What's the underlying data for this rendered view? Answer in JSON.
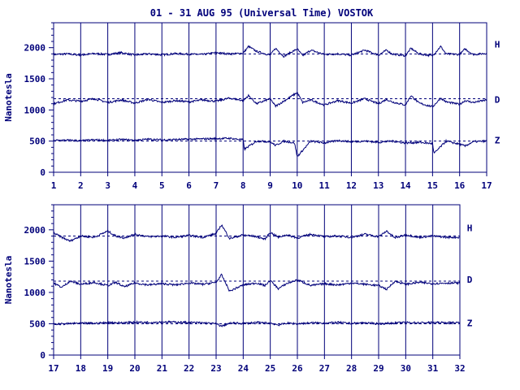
{
  "chart_data": [
    {
      "type": "line",
      "title": "01 - 31 AUG 95 (Universal Time) VOSTOK",
      "ylabel": "Nanotesla",
      "x_ticks": [
        "1",
        "2",
        "3",
        "4",
        "5",
        "6",
        "7",
        "8",
        "9",
        "10",
        "11",
        "12",
        "13",
        "14",
        "15",
        "16",
        "17"
      ],
      "xlim": [
        1,
        17
      ],
      "y_ticks": [
        "0",
        "500",
        "1000",
        "1500",
        "2000"
      ],
      "ylim": [
        0,
        2400
      ],
      "grid": true,
      "series": [
        {
          "name": "H",
          "baseline": 1900,
          "color": "#00007a",
          "x": [
            1,
            1.5,
            2,
            2.5,
            3,
            3.5,
            4,
            4.5,
            5,
            5.5,
            6,
            6.5,
            7,
            7.5,
            8,
            8.2,
            8.5,
            9,
            9.2,
            9.5,
            10,
            10.2,
            10.5,
            11,
            11.5,
            12,
            12.5,
            13,
            13.3,
            13.5,
            14,
            14.2,
            14.5,
            15,
            15.3,
            15.5,
            16,
            16.2,
            16.5,
            17
          ],
          "y": [
            1890,
            1900,
            1880,
            1905,
            1890,
            1920,
            1880,
            1900,
            1885,
            1905,
            1895,
            1890,
            1920,
            1900,
            1910,
            2020,
            1940,
            1880,
            1990,
            1860,
            1980,
            1870,
            1960,
            1890,
            1900,
            1880,
            1960,
            1880,
            1960,
            1900,
            1870,
            1990,
            1900,
            1870,
            2020,
            1900,
            1890,
            1980,
            1890,
            1910
          ]
        },
        {
          "name": "D",
          "baseline": 1180,
          "color": "#00007a",
          "x": [
            1,
            1.5,
            2,
            2.5,
            3,
            3.5,
            4,
            4.5,
            5,
            5.5,
            6,
            6.5,
            7,
            7.5,
            8,
            8.2,
            8.5,
            9,
            9.2,
            9.5,
            10,
            10.2,
            10.5,
            11,
            11.5,
            12,
            12.5,
            13,
            13.3,
            13.5,
            14,
            14.2,
            14.5,
            15,
            15.3,
            15.5,
            16,
            16.2,
            16.5,
            17
          ],
          "y": [
            1100,
            1160,
            1140,
            1180,
            1120,
            1160,
            1110,
            1170,
            1120,
            1150,
            1130,
            1160,
            1140,
            1190,
            1150,
            1230,
            1100,
            1180,
            1060,
            1140,
            1280,
            1120,
            1160,
            1080,
            1150,
            1110,
            1180,
            1100,
            1170,
            1130,
            1080,
            1230,
            1110,
            1050,
            1190,
            1130,
            1090,
            1150,
            1120,
            1160
          ]
        },
        {
          "name": "Z",
          "baseline": 500,
          "color": "#00007a",
          "x": [
            1,
            1.5,
            2,
            2.5,
            3,
            3.5,
            4,
            4.5,
            5,
            5.5,
            6,
            6.5,
            7,
            7.5,
            8,
            8.05,
            8.5,
            9,
            9.2,
            9.5,
            9.9,
            10,
            10.5,
            11,
            11.5,
            12,
            12.5,
            13,
            13.5,
            14,
            14.5,
            15,
            15.05,
            15.5,
            16,
            16.2,
            16.5,
            17
          ],
          "y": [
            510,
            515,
            505,
            520,
            510,
            525,
            515,
            530,
            520,
            525,
            530,
            535,
            540,
            545,
            520,
            370,
            500,
            490,
            430,
            500,
            470,
            250,
            500,
            470,
            510,
            490,
            500,
            480,
            500,
            470,
            480,
            460,
            300,
            500,
            450,
            420,
            490,
            500
          ]
        }
      ],
      "labels": [
        "H",
        "D",
        "Z"
      ]
    },
    {
      "type": "line",
      "title": "",
      "ylabel": "Nanotesla",
      "x_ticks": [
        "17",
        "18",
        "19",
        "20",
        "21",
        "22",
        "23",
        "24",
        "25",
        "26",
        "27",
        "28",
        "29",
        "30",
        "31",
        "32"
      ],
      "xlim": [
        17,
        32
      ],
      "y_ticks": [
        "0",
        "500",
        "1000",
        "1500",
        "2000"
      ],
      "ylim": [
        0,
        2400
      ],
      "grid": true,
      "series": [
        {
          "name": "H",
          "baseline": 1900,
          "color": "#00007a",
          "x": [
            17,
            17.3,
            17.6,
            18,
            18.5,
            19,
            19.3,
            19.6,
            20,
            20.5,
            21,
            21.5,
            22,
            22.5,
            23,
            23.2,
            23.5,
            24,
            24.5,
            24.8,
            25,
            25.3,
            25.6,
            26,
            26.5,
            27,
            27.5,
            28,
            28.5,
            29,
            29.3,
            29.6,
            30,
            30.5,
            31,
            31.5,
            32
          ],
          "y": [
            1950,
            1880,
            1820,
            1900,
            1880,
            1980,
            1900,
            1870,
            1930,
            1890,
            1900,
            1880,
            1910,
            1880,
            1940,
            2080,
            1860,
            1920,
            1890,
            1850,
            1960,
            1880,
            1920,
            1870,
            1930,
            1890,
            1900,
            1880,
            1930,
            1890,
            1980,
            1870,
            1920,
            1880,
            1900,
            1880,
            1880
          ]
        },
        {
          "name": "D",
          "baseline": 1180,
          "color": "#00007a",
          "x": [
            17,
            17.3,
            17.6,
            18,
            18.5,
            19,
            19.3,
            19.6,
            20,
            20.5,
            21,
            21.5,
            22,
            22.5,
            23,
            23.2,
            23.5,
            24,
            24.5,
            24.8,
            25,
            25.3,
            25.6,
            26,
            26.5,
            27,
            27.5,
            28,
            28.5,
            29,
            29.3,
            29.6,
            30,
            30.5,
            31,
            31.5,
            32
          ],
          "y": [
            1150,
            1080,
            1180,
            1130,
            1160,
            1110,
            1160,
            1090,
            1150,
            1120,
            1140,
            1120,
            1150,
            1130,
            1160,
            1280,
            1020,
            1120,
            1150,
            1110,
            1190,
            1060,
            1140,
            1200,
            1110,
            1140,
            1120,
            1150,
            1130,
            1110,
            1050,
            1180,
            1130,
            1160,
            1140,
            1150,
            1150
          ]
        },
        {
          "name": "Z",
          "baseline": 500,
          "color": "#00007a",
          "x": [
            17,
            17.5,
            18,
            18.5,
            19,
            19.5,
            20,
            20.5,
            21,
            21.5,
            22,
            22.5,
            23,
            23.2,
            23.5,
            24,
            24.5,
            25,
            25.3,
            25.6,
            26,
            26.5,
            27,
            27.5,
            28,
            28.5,
            29,
            29.5,
            30,
            30.5,
            31,
            31.5,
            32
          ],
          "y": [
            490,
            500,
            510,
            505,
            520,
            515,
            525,
            520,
            530,
            525,
            520,
            515,
            500,
            460,
            510,
            505,
            520,
            510,
            480,
            510,
            500,
            515,
            510,
            520,
            505,
            515,
            500,
            510,
            520,
            515,
            520,
            515,
            520
          ]
        }
      ],
      "labels": [
        "H",
        "D",
        "Z"
      ]
    }
  ]
}
